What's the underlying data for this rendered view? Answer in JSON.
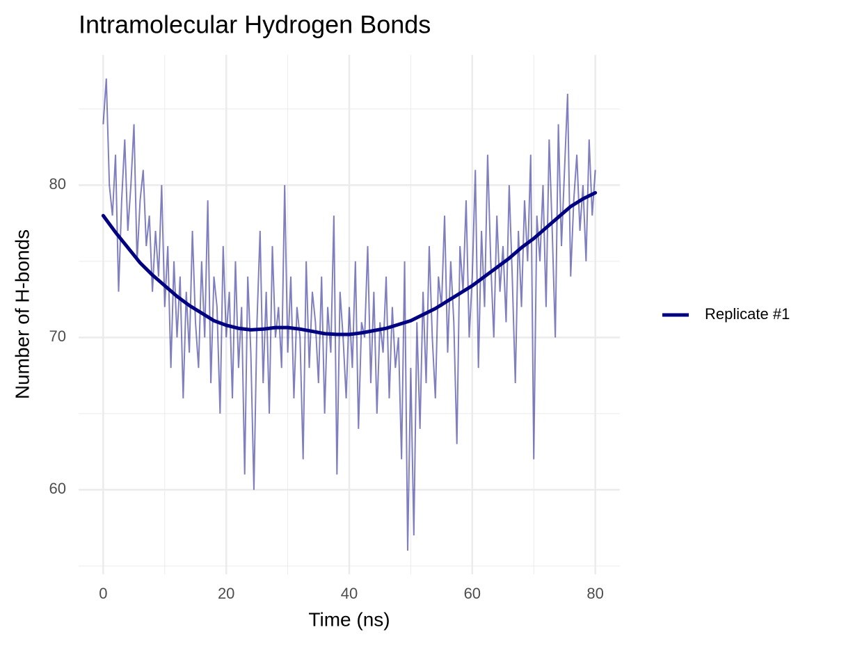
{
  "chart_data": {
    "type": "line",
    "title": "Intramolecular Hydrogen Bonds",
    "x_label": "Time (ns)",
    "y_label": "Number of H-bonds",
    "xlim": [
      -4,
      84
    ],
    "ylim": [
      54.45,
      88.55
    ],
    "xticks": [
      0,
      20,
      40,
      60,
      80
    ],
    "yticks": [
      60,
      70,
      80
    ],
    "xminorticks": [
      10,
      30,
      50,
      70
    ],
    "yminorticks": [
      55,
      65,
      75,
      85
    ],
    "grid": true,
    "legend": "right",
    "x": [
      0,
      0.5,
      1,
      1.5,
      2,
      2.5,
      3,
      3.5,
      4,
      4.5,
      5,
      5.5,
      6,
      6.5,
      7,
      7.5,
      8,
      8.5,
      9,
      9.5,
      10,
      10.5,
      11,
      11.5,
      12,
      12.5,
      13,
      13.5,
      14,
      14.5,
      15,
      15.5,
      16,
      16.5,
      17,
      17.5,
      18,
      18.5,
      19,
      19.5,
      20,
      20.5,
      21,
      21.5,
      22,
      22.5,
      23,
      23.5,
      24,
      24.5,
      25,
      25.5,
      26,
      26.5,
      27,
      27.5,
      28,
      28.5,
      29,
      29.5,
      30,
      30.5,
      31,
      31.5,
      32,
      32.5,
      33,
      33.5,
      34,
      34.5,
      35,
      35.5,
      36,
      36.5,
      37,
      37.5,
      38,
      38.5,
      39,
      39.5,
      40,
      40.5,
      41,
      41.5,
      42,
      42.5,
      43,
      43.5,
      44,
      44.5,
      45,
      45.5,
      46,
      46.5,
      47,
      47.5,
      48,
      48.5,
      49,
      49.5,
      50,
      50.5,
      51,
      51.5,
      52,
      52.5,
      53,
      53.5,
      54,
      54.5,
      55,
      55.5,
      56,
      56.5,
      57,
      57.5,
      58,
      58.5,
      59,
      59.5,
      60,
      60.5,
      61,
      61.5,
      62,
      62.5,
      63,
      63.5,
      64,
      64.5,
      65,
      65.5,
      66,
      66.5,
      67,
      67.5,
      68,
      68.5,
      69,
      69.5,
      70,
      70.5,
      71,
      71.5,
      72,
      72.5,
      73,
      73.5,
      74,
      74.5,
      75,
      75.5,
      76,
      76.5,
      77,
      77.5,
      78,
      78.5,
      79,
      79.5,
      80
    ],
    "series": [
      {
        "name": "Replicate #1",
        "color": "#000080",
        "values": [
          84,
          87,
          80,
          78,
          82,
          73,
          79,
          83,
          77,
          80,
          84,
          75,
          79,
          81,
          76,
          78,
          73,
          77,
          74,
          80,
          72,
          76,
          68,
          75,
          70,
          74,
          66,
          73,
          69,
          77,
          71,
          68,
          75,
          70,
          79,
          67,
          74,
          72,
          65,
          76,
          70,
          73,
          66,
          75,
          68,
          72,
          61,
          74,
          69,
          60,
          71,
          77,
          67,
          73,
          65,
          76,
          70,
          72,
          68,
          80,
          69,
          74,
          66,
          72,
          70,
          62,
          75,
          68,
          73,
          71,
          67,
          74,
          65,
          72,
          69,
          78,
          61,
          73,
          70,
          66,
          72,
          68,
          75,
          64,
          71,
          70,
          76,
          67,
          73,
          65,
          71,
          69,
          74,
          66,
          72,
          68,
          70,
          62,
          75,
          56,
          68,
          57,
          71,
          64,
          73,
          67,
          76,
          70,
          66,
          74,
          72,
          78,
          69,
          75,
          71,
          63,
          76,
          73,
          79,
          70,
          74,
          81,
          68,
          77,
          72,
          82,
          75,
          70,
          78,
          73,
          76,
          71,
          80,
          74,
          67,
          77,
          72,
          79,
          75,
          82,
          62,
          78,
          75,
          80,
          72,
          83,
          77,
          70,
          84,
          76,
          81,
          86,
          74,
          79,
          82,
          77,
          80,
          75,
          83,
          78,
          81
        ],
        "smooth_x": [
          0,
          2,
          4,
          6,
          8,
          10,
          12,
          14,
          16,
          18,
          20,
          22,
          24,
          26,
          28,
          30,
          32,
          34,
          36,
          38,
          40,
          42,
          44,
          46,
          48,
          50,
          52,
          54,
          56,
          58,
          60,
          62,
          64,
          66,
          68,
          70,
          72,
          74,
          76,
          78,
          80
        ],
        "smooth_values": [
          78,
          76.9,
          75.9,
          74.9,
          74.1,
          73.4,
          72.7,
          72.1,
          71.6,
          71.1,
          70.8,
          70.6,
          70.5,
          70.55,
          70.65,
          70.65,
          70.55,
          70.4,
          70.25,
          70.2,
          70.2,
          70.3,
          70.45,
          70.6,
          70.85,
          71.1,
          71.5,
          71.9,
          72.4,
          72.9,
          73.4,
          74.0,
          74.6,
          75.2,
          75.9,
          76.5,
          77.2,
          77.9,
          78.6,
          79.1,
          79.5
        ]
      }
    ]
  }
}
